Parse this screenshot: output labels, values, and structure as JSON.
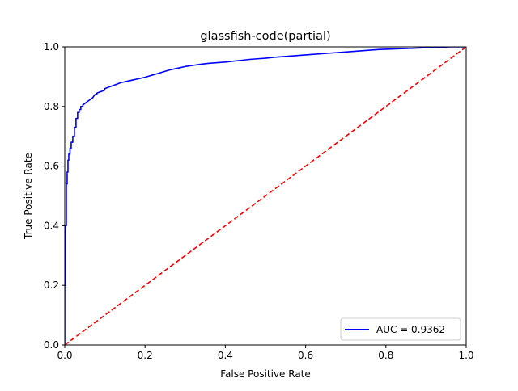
{
  "chart_data": {
    "type": "line",
    "title": "glassfish-code(partial)",
    "xlabel": "False Positive Rate",
    "ylabel": "True Positive Rate",
    "xlim": [
      0.0,
      1.0
    ],
    "ylim": [
      0.0,
      1.0
    ],
    "xticks": [
      "0.0",
      "0.2",
      "0.4",
      "0.6",
      "0.8",
      "1.0"
    ],
    "yticks": [
      "0.0",
      "0.2",
      "0.4",
      "0.6",
      "0.8",
      "1.0"
    ],
    "grid": false,
    "legend_position": "lower-right",
    "series": [
      {
        "name": "AUC = 0.9362",
        "color": "#0000ff",
        "style": "solid",
        "x": [
          0.0,
          0.0,
          0.002,
          0.002,
          0.004,
          0.004,
          0.006,
          0.006,
          0.008,
          0.008,
          0.01,
          0.01,
          0.013,
          0.013,
          0.016,
          0.016,
          0.02,
          0.02,
          0.024,
          0.024,
          0.028,
          0.028,
          0.032,
          0.032,
          0.036,
          0.036,
          0.04,
          0.04,
          0.045,
          0.045,
          0.05,
          0.055,
          0.06,
          0.065,
          0.07,
          0.075,
          0.08,
          0.08,
          0.09,
          0.1,
          0.1,
          0.11,
          0.12,
          0.13,
          0.14,
          0.15,
          0.16,
          0.17,
          0.18,
          0.19,
          0.2,
          0.21,
          0.22,
          0.23,
          0.24,
          0.25,
          0.26,
          0.28,
          0.3,
          0.32,
          0.34,
          0.36,
          0.38,
          0.4,
          0.42,
          0.44,
          0.46,
          0.48,
          0.5,
          0.52,
          0.54,
          0.56,
          0.58,
          0.6,
          0.62,
          0.64,
          0.66,
          0.68,
          0.7,
          0.72,
          0.74,
          0.76,
          0.78,
          0.8,
          0.82,
          0.84,
          0.86,
          0.88,
          0.9,
          0.92,
          0.94,
          0.96,
          0.98,
          1.0
        ],
        "y": [
          0.0,
          0.2,
          0.2,
          0.4,
          0.4,
          0.54,
          0.54,
          0.58,
          0.58,
          0.62,
          0.62,
          0.64,
          0.64,
          0.66,
          0.66,
          0.68,
          0.68,
          0.7,
          0.7,
          0.73,
          0.73,
          0.76,
          0.76,
          0.78,
          0.78,
          0.79,
          0.79,
          0.8,
          0.8,
          0.805,
          0.81,
          0.815,
          0.82,
          0.825,
          0.83,
          0.84,
          0.84,
          0.845,
          0.85,
          0.855,
          0.86,
          0.865,
          0.87,
          0.875,
          0.88,
          0.883,
          0.886,
          0.889,
          0.892,
          0.895,
          0.898,
          0.902,
          0.906,
          0.91,
          0.914,
          0.918,
          0.922,
          0.928,
          0.934,
          0.938,
          0.942,
          0.945,
          0.947,
          0.949,
          0.952,
          0.955,
          0.958,
          0.96,
          0.962,
          0.965,
          0.967,
          0.969,
          0.971,
          0.973,
          0.975,
          0.977,
          0.979,
          0.981,
          0.983,
          0.985,
          0.987,
          0.989,
          0.991,
          0.992,
          0.993,
          0.994,
          0.995,
          0.996,
          0.997,
          0.998,
          0.999,
          1.0,
          1.0,
          1.0
        ]
      },
      {
        "name": "",
        "color": "#ff0000",
        "style": "dashed",
        "x": [
          0.0,
          1.0
        ],
        "y": [
          0.0,
          1.0
        ]
      }
    ],
    "legend": [
      {
        "label": "AUC = 0.9362",
        "color": "#0000ff"
      }
    ]
  }
}
